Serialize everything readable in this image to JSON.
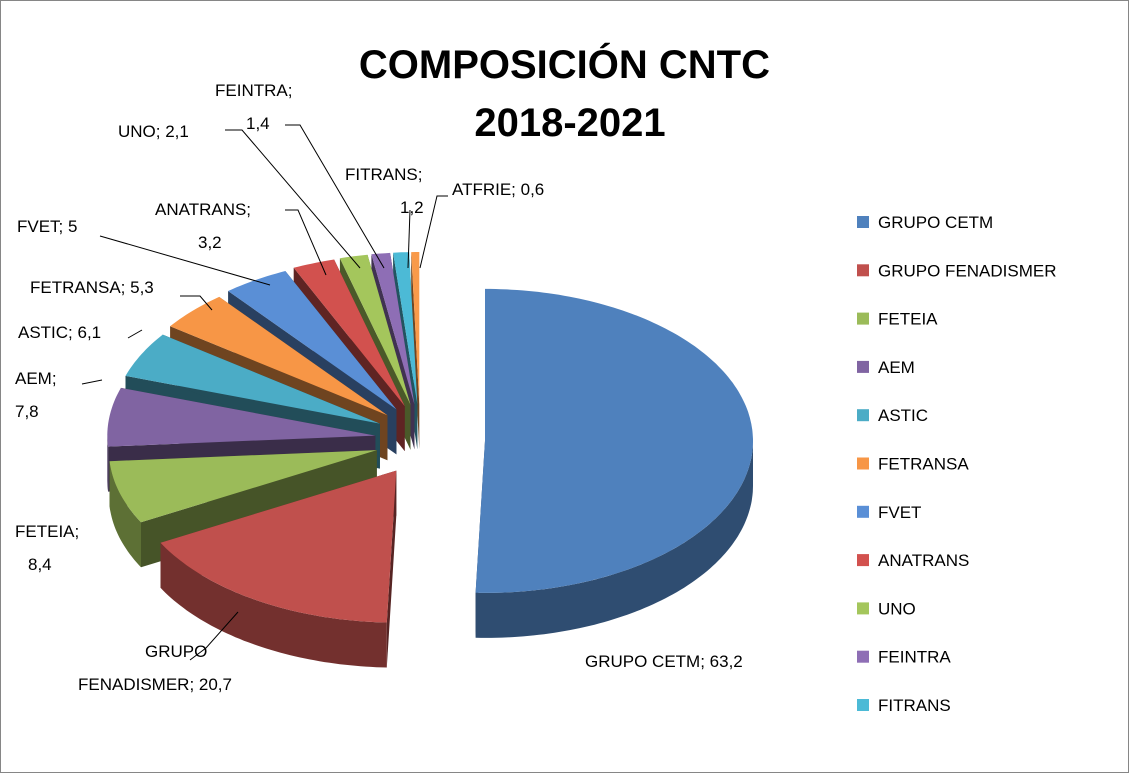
{
  "chart_data": {
    "type": "pie",
    "title": "COMPOSICIÓN CNTC 2018-2021",
    "categories": [
      "GRUPO CETM",
      "GRUPO FENADISMER",
      "FETEIA",
      "AEM",
      "ASTIC",
      "FETRANSA",
      "FVET",
      "ANATRANS",
      "UNO",
      "FEINTRA",
      "FITRANS",
      "ATFRIE"
    ],
    "values": [
      63.2,
      20.7,
      8.4,
      7.8,
      6.1,
      5.3,
      5,
      3.2,
      2.1,
      1.4,
      1.2,
      0.6
    ],
    "value_labels": [
      "GRUPO CETM; 63,2",
      "GRUPO FENADISMER; 20,7",
      "FETEIA; 8,4",
      "AEM; 7,8",
      "ASTIC; 6,1",
      "FETRANSA; 5,3",
      "FVET; 5",
      "ANATRANS; 3,2",
      "UNO; 2,1",
      "FEINTRA; 1,4",
      "FITRANS; 1,2",
      "ATFRIE; 0,6"
    ],
    "colors": [
      "#4F81BD",
      "#C0504D",
      "#9BBB59",
      "#8064A2",
      "#4BACC6",
      "#F79646",
      "#5A8FD6",
      "#D2514E",
      "#A4C65C",
      "#8E6EB5",
      "#4CBAD6",
      "#F99A4A"
    ],
    "legend": "right"
  }
}
